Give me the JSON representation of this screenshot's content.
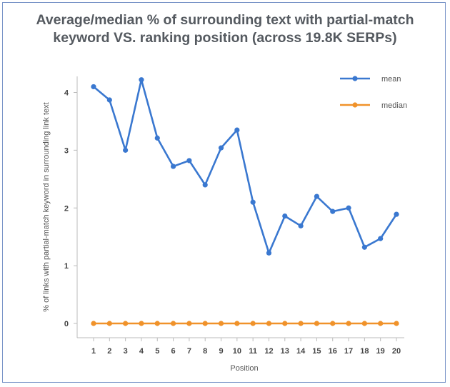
{
  "chart_data": {
    "type": "line",
    "title_line1": "Average/median % of surrounding text with partial-match",
    "title_line2": "keyword VS. ranking position (across 19.8K SERPs)",
    "xlabel": "Position",
    "ylabel": "% of links with partial-match keyword in surrounding link text",
    "x": [
      1,
      2,
      3,
      4,
      5,
      6,
      7,
      8,
      9,
      10,
      11,
      12,
      13,
      14,
      15,
      16,
      17,
      18,
      19,
      20
    ],
    "ylim": [
      0,
      4.4
    ],
    "yticks": [
      0,
      1,
      2,
      3,
      4
    ],
    "grid": false,
    "legend_position": "top-right",
    "series": [
      {
        "name": "mean",
        "color": "#3a78d0",
        "values": [
          4.1,
          3.87,
          3.0,
          4.22,
          3.21,
          2.72,
          2.82,
          2.4,
          3.04,
          3.35,
          2.1,
          1.22,
          1.86,
          1.69,
          2.2,
          1.94,
          2.0,
          1.32,
          1.47,
          1.89
        ]
      },
      {
        "name": "median",
        "color": "#f0922a",
        "values": [
          0,
          0,
          0,
          0,
          0,
          0,
          0,
          0,
          0,
          0,
          0,
          0,
          0,
          0,
          0,
          0,
          0,
          0,
          0,
          0
        ]
      }
    ]
  }
}
